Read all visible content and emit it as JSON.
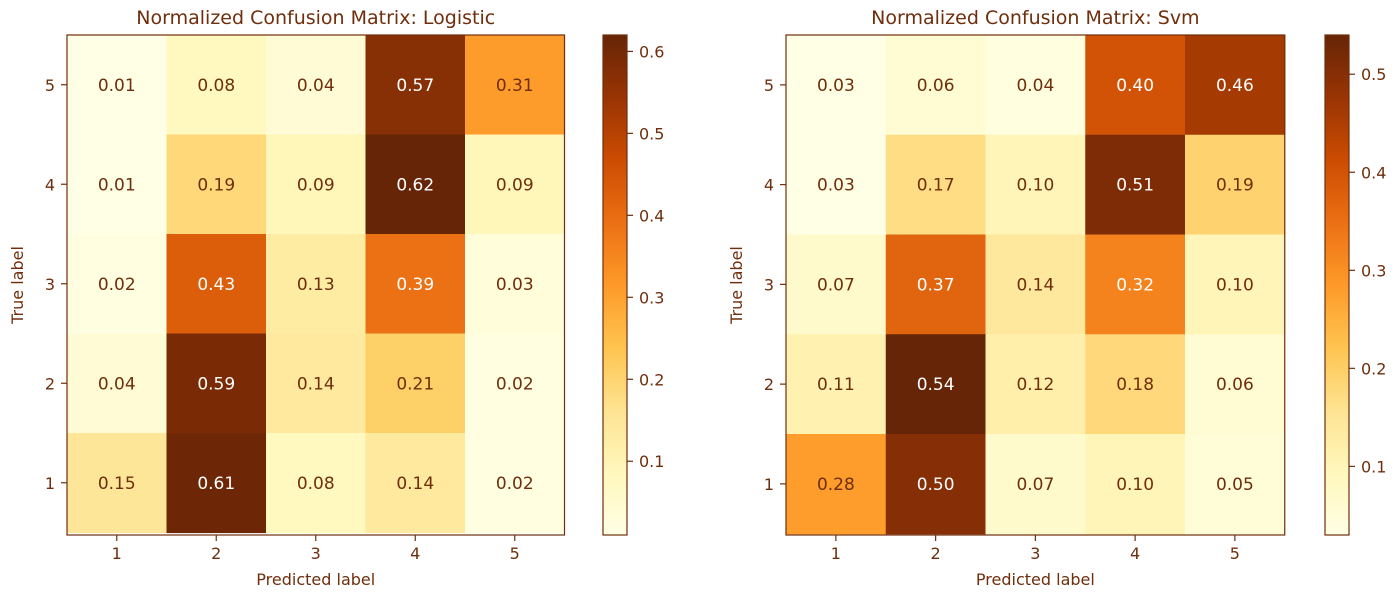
{
  "chart_data": [
    {
      "type": "heatmap",
      "title": "Normalized Confusion Matrix: Logistic",
      "xlabel": "Predicted label",
      "ylabel": "True label",
      "x_categories": [
        "1",
        "2",
        "3",
        "4",
        "5"
      ],
      "y_categories": [
        "5",
        "4",
        "3",
        "2",
        "1"
      ],
      "values": [
        [
          0.01,
          0.08,
          0.04,
          0.57,
          0.31
        ],
        [
          0.01,
          0.19,
          0.09,
          0.62,
          0.09
        ],
        [
          0.02,
          0.43,
          0.13,
          0.39,
          0.03
        ],
        [
          0.04,
          0.59,
          0.14,
          0.21,
          0.02
        ],
        [
          0.15,
          0.61,
          0.08,
          0.14,
          0.02
        ]
      ],
      "value_labels": [
        [
          "0.01",
          "0.08",
          "0.04",
          "0.57",
          "0.31"
        ],
        [
          "0.01",
          "0.19",
          "0.09",
          "0.62",
          "0.09"
        ],
        [
          "0.02",
          "0.43",
          "0.13",
          "0.39",
          "0.03"
        ],
        [
          "0.04",
          "0.59",
          "0.14",
          "0.21",
          "0.02"
        ],
        [
          "0.15",
          "0.61",
          "0.08",
          "0.14",
          "0.02"
        ]
      ],
      "colorbar": {
        "range": [
          0.01,
          0.62
        ],
        "ticks": [
          0.1,
          0.2,
          0.3,
          0.4,
          0.5,
          0.6
        ],
        "tick_labels": [
          "0.1",
          "0.2",
          "0.3",
          "0.4",
          "0.5",
          "0.6"
        ]
      },
      "colormap": "YlOrBr",
      "grid": false
    },
    {
      "type": "heatmap",
      "title": "Normalized Confusion Matrix: Svm",
      "xlabel": "Predicted label",
      "ylabel": "True label",
      "x_categories": [
        "1",
        "2",
        "3",
        "4",
        "5"
      ],
      "y_categories": [
        "5",
        "4",
        "3",
        "2",
        "1"
      ],
      "values": [
        [
          0.03,
          0.06,
          0.04,
          0.4,
          0.46
        ],
        [
          0.03,
          0.17,
          0.1,
          0.51,
          0.19
        ],
        [
          0.07,
          0.37,
          0.14,
          0.32,
          0.1
        ],
        [
          0.11,
          0.54,
          0.12,
          0.18,
          0.06
        ],
        [
          0.28,
          0.5,
          0.07,
          0.1,
          0.05
        ]
      ],
      "value_labels": [
        [
          "0.03",
          "0.06",
          "0.04",
          "0.40",
          "0.46"
        ],
        [
          "0.03",
          "0.17",
          "0.10",
          "0.51",
          "0.19"
        ],
        [
          "0.07",
          "0.37",
          "0.14",
          "0.32",
          "0.10"
        ],
        [
          "0.11",
          "0.54",
          "0.12",
          "0.18",
          "0.06"
        ],
        [
          "0.28",
          "0.50",
          "0.07",
          "0.10",
          "0.05"
        ]
      ],
      "colorbar": {
        "range": [
          0.03,
          0.54
        ],
        "ticks": [
          0.1,
          0.2,
          0.3,
          0.4,
          0.5
        ],
        "tick_labels": [
          "0.1",
          "0.2",
          "0.3",
          "0.4",
          "0.5"
        ]
      },
      "colormap": "YlOrBr",
      "grid": false
    }
  ],
  "colors": {
    "text_dark": "#6f2e0c",
    "text_light": "#ffffff",
    "axis": "#6f2e0c",
    "colormap_stops": [
      "#ffffe5",
      "#fff7bc",
      "#fee391",
      "#fec44f",
      "#fe9929",
      "#ec7014",
      "#cc4c02",
      "#993404",
      "#662506"
    ]
  }
}
